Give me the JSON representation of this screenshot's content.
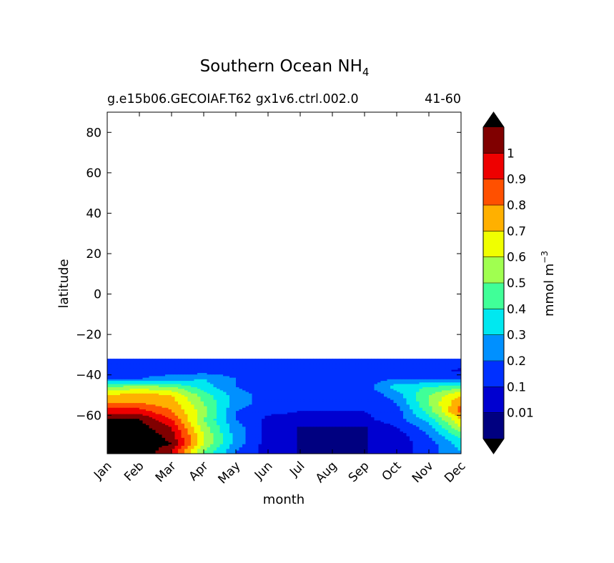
{
  "chart_data": {
    "type": "heatmap",
    "title": "Southern Ocean NH",
    "title_subscript": "4",
    "subtitle_left": "g.e15b06.GECOIAF.T62 gx1v6.ctrl.002.0",
    "subtitle_right": "41-60",
    "xlabel": "month",
    "ylabel": "latitude",
    "x_categories": [
      "Jan",
      "Feb",
      "Mar",
      "Apr",
      "May",
      "Jun",
      "Jul",
      "Aug",
      "Sep",
      "Oct",
      "Nov",
      "Dec"
    ],
    "y_ticks": [
      80,
      60,
      40,
      20,
      0,
      -20,
      -40,
      -60
    ],
    "y_tick_labels": [
      "80",
      "60",
      "40",
      "20",
      "0",
      "−20",
      "−40",
      "−60"
    ],
    "ylim": [
      -79,
      90
    ],
    "data_lat_range": [
      -79,
      -32
    ],
    "grid": false,
    "colorbar": {
      "label": "mmol m",
      "label_superscript": "−3",
      "levels": [
        0,
        0.01,
        0.1,
        0.2,
        0.3,
        0.4,
        0.5,
        0.6,
        0.7,
        0.8,
        0.9,
        1,
        1.1
      ],
      "tick_labels": [
        "0.01",
        "0.1",
        "0.2",
        "0.3",
        "0.4",
        "0.5",
        "0.6",
        "0.7",
        "0.8",
        "0.9",
        "1"
      ],
      "colors": [
        "#000080",
        "#0000d0",
        "#0030ff",
        "#0090ff",
        "#00e8f0",
        "#40ff98",
        "#a0ff50",
        "#f0ff00",
        "#ffb000",
        "#ff5000",
        "#ee0000",
        "#800000"
      ],
      "under_color": "#000000",
      "over_color": "#000000",
      "extend": "both"
    },
    "field": {
      "lat": [
        -34,
        -38,
        -42,
        -46,
        -50,
        -54,
        -58,
        -62,
        -66,
        -70,
        -74,
        -78
      ],
      "months": [
        1,
        2,
        3,
        4,
        5,
        6,
        7,
        8,
        9,
        10,
        11,
        12
      ],
      "values": [
        [
          0.15,
          0.12,
          0.12,
          0.1,
          0.1,
          0.1,
          0.1,
          0.1,
          0.12,
          0.15,
          0.15,
          0.15
        ],
        [
          0.18,
          0.15,
          0.15,
          0.15,
          0.15,
          0.15,
          0.15,
          0.15,
          0.15,
          0.15,
          0.15,
          0.08
        ],
        [
          0.2,
          0.2,
          0.25,
          0.3,
          0.2,
          0.15,
          0.15,
          0.15,
          0.15,
          0.2,
          0.2,
          0.2
        ],
        [
          0.5,
          0.55,
          0.5,
          0.35,
          0.2,
          0.15,
          0.15,
          0.15,
          0.15,
          0.35,
          0.4,
          0.45
        ],
        [
          0.7,
          0.75,
          0.7,
          0.45,
          0.25,
          0.15,
          0.12,
          0.12,
          0.12,
          0.25,
          0.5,
          0.7
        ],
        [
          0.8,
          0.8,
          0.75,
          0.5,
          0.25,
          0.15,
          0.12,
          0.1,
          0.1,
          0.2,
          0.5,
          0.8
        ],
        [
          0.95,
          0.95,
          0.8,
          0.55,
          0.2,
          0.12,
          0.1,
          0.1,
          0.1,
          0.15,
          0.45,
          0.85
        ],
        [
          1.1,
          1.1,
          0.9,
          0.5,
          0.2,
          0.08,
          0.07,
          0.08,
          0.08,
          0.15,
          0.35,
          0.7
        ],
        [
          1.15,
          1.15,
          1.0,
          0.55,
          0.25,
          0.06,
          0.005,
          0.005,
          0.005,
          0.1,
          0.25,
          0.6
        ],
        [
          1.2,
          1.2,
          1.05,
          0.6,
          0.25,
          0.05,
          0.005,
          0.005,
          0.005,
          0.05,
          0.2,
          0.45
        ],
        [
          1.2,
          1.2,
          1.1,
          0.6,
          0.25,
          0.05,
          0.005,
          0.005,
          0.005,
          0.05,
          0.15,
          0.35
        ],
        [
          1.2,
          1.2,
          1.0,
          0.5,
          0.2,
          0.05,
          0.005,
          0.005,
          0.005,
          0.05,
          0.15,
          0.3
        ]
      ]
    }
  }
}
